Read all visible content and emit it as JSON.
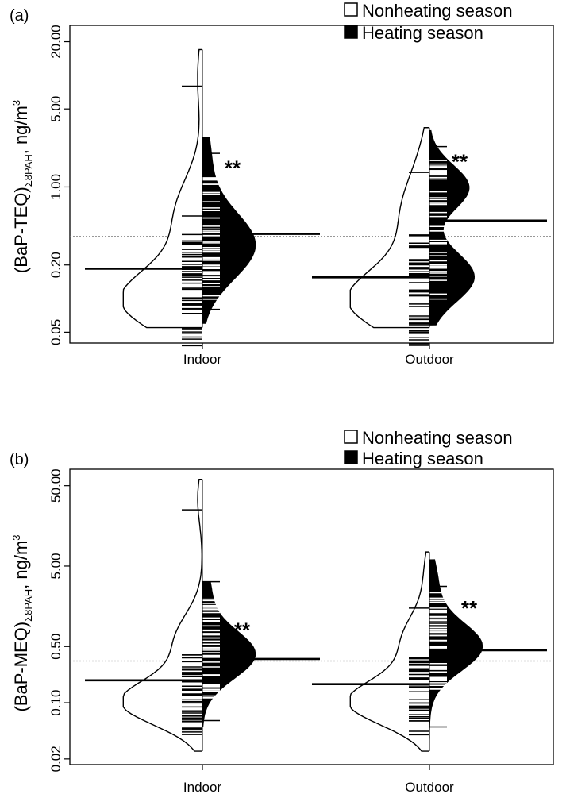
{
  "chart_data": [
    {
      "type": "beanplot",
      "panel_label": "(a)",
      "ylabel_main": "(BaP-TEQ)",
      "ylabel_sub": "Σ8PAH",
      "ylabel_unit": ", ng/m",
      "ylabel_sup": "3",
      "y_scale": "log",
      "ylim": [
        0.04,
        28
      ],
      "yticks": [
        0.05,
        0.2,
        1.0,
        5.0,
        20.0
      ],
      "ytick_labels": [
        "0.05",
        "0.20",
        "1.00",
        "5.00",
        "20.00"
      ],
      "categories": [
        "Indoor",
        "Outdoor"
      ],
      "legend": [
        {
          "label": "Nonheating season",
          "fill": "#ffffff"
        },
        {
          "label": "Heating season",
          "fill": "#000000"
        }
      ],
      "legend_position": "top-right",
      "reference_line": 0.36,
      "significance": [
        "**",
        "**"
      ],
      "series": [
        {
          "name": "Nonheating season",
          "medians": [
            0.185,
            0.155
          ],
          "ranges": [
            [
              0.055,
              17
            ],
            [
              0.055,
              3.4
            ]
          ],
          "modes": [
            0.095,
            0.095
          ],
          "outlier_ticks": [
            [
              8.0,
              0.55
            ],
            [
              1.35
            ]
          ]
        },
        {
          "name": "Heating season",
          "medians": [
            0.38,
            0.5
          ],
          "ranges": [
            [
              0.06,
              2.8
            ],
            [
              0.058,
              3.2
            ]
          ],
          "modes": [
            0.3,
            0.35
          ],
          "outlier_ticks": [
            [
              2.0,
              0.08
            ],
            [
              2.3
            ]
          ]
        }
      ]
    },
    {
      "type": "beanplot",
      "panel_label": "(b)",
      "ylabel_main": "(BaP-MEQ)",
      "ylabel_sub": "Σ8PAH",
      "ylabel_unit": ", ng/m",
      "ylabel_sup": "3",
      "y_scale": "log",
      "ylim": [
        0.017,
        80
      ],
      "yticks": [
        0.02,
        0.1,
        0.5,
        5.0,
        50.0
      ],
      "ytick_labels": [
        "0.02",
        "0.10",
        "0.50",
        "5.00",
        "50.00"
      ],
      "categories": [
        "Indoor",
        "Outdoor"
      ],
      "legend": [
        {
          "label": "Nonheating season",
          "fill": "#ffffff"
        },
        {
          "label": "Heating season",
          "fill": "#000000"
        }
      ],
      "legend_position": "top-right",
      "reference_line": 0.33,
      "significance": [
        "**",
        "**"
      ],
      "series": [
        {
          "name": "Nonheating season",
          "medians": [
            0.19,
            0.17
          ],
          "ranges": [
            [
              0.025,
              60
            ],
            [
              0.025,
              7.5
            ]
          ],
          "modes": [
            0.1,
            0.1
          ],
          "outlier_ticks": [
            [
              25.0
            ],
            [
              1.5
            ]
          ]
        },
        {
          "name": "Heating season",
          "medians": [
            0.35,
            0.45
          ],
          "ranges": [
            [
              0.05,
              3.2
            ],
            [
              0.03,
              6.0
            ]
          ],
          "modes": [
            0.4,
            0.5
          ],
          "outlier_ticks": [
            [
              3.2,
              0.06
            ],
            [
              2.8,
              0.05
            ]
          ]
        }
      ]
    }
  ]
}
